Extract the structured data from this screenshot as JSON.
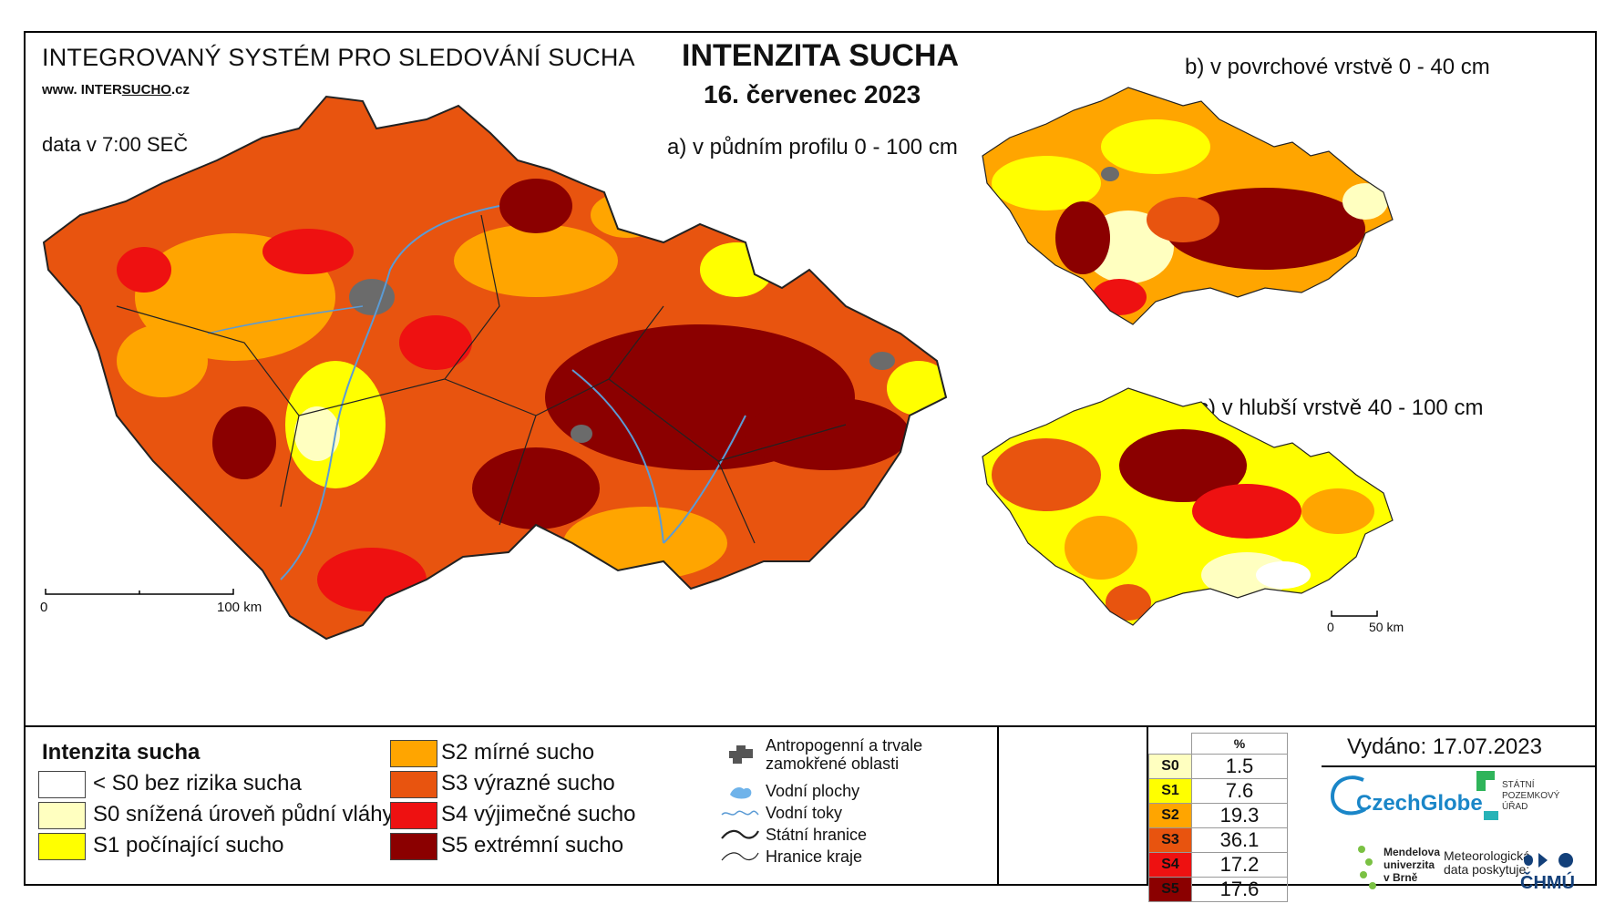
{
  "header": {
    "system_title": "INTEGROVANÝ SYSTÉM PRO SLEDOVÁNÍ SUCHA",
    "website_prefix": "www. INTER",
    "website_underlined": "SUCHO",
    "website_suffix": ".cz",
    "data_time": "data v 7:00 SEČ",
    "title": "INTENZITA SUCHA",
    "date": "16. červenec 2023"
  },
  "maps": {
    "a_label": "a) v půdním profilu 0 - 100 cm",
    "b_label": "b) v povrchové vrstvě 0 - 40 cm",
    "c_label": "c) v hlubší vrstvě 40 - 100 cm",
    "scale_main": {
      "start": "0",
      "end": "100 km"
    },
    "scale_small": {
      "start": "0",
      "end": "50 km"
    }
  },
  "legend": {
    "title": "Intenzita sucha",
    "classes": [
      {
        "label": "< S0 bez rizika sucha",
        "color": "#ffffff"
      },
      {
        "label": "S0 snížená úroveň půdní vláhy",
        "color": "#ffffc0"
      },
      {
        "label": "S1 počínající sucho",
        "color": "#ffff00"
      },
      {
        "label": "S2 mírné sucho",
        "color": "#ffa500"
      },
      {
        "label": "S3 výrazné sucho",
        "color": "#e8540f"
      },
      {
        "label": "S4 výjimečné sucho",
        "color": "#ee1111"
      },
      {
        "label": "S5 extrémní sucho",
        "color": "#8b0000"
      }
    ],
    "symbols": [
      {
        "label": "Antropogenní a trvale zamokřené oblasti",
        "icon": "anthropogenic-area-icon"
      },
      {
        "label": "Vodní plochy",
        "icon": "water-body-icon"
      },
      {
        "label": "Vodní toky",
        "icon": "river-icon"
      },
      {
        "label": "Státní hranice",
        "icon": "state-border-icon"
      },
      {
        "label": "Hranice kraje",
        "icon": "region-border-icon"
      }
    ]
  },
  "percent_table": {
    "header": "%",
    "rows": [
      {
        "cls": "S0",
        "value": "1.5",
        "color": "#ffffc0"
      },
      {
        "cls": "S1",
        "value": "7.6",
        "color": "#ffff00"
      },
      {
        "cls": "S2",
        "value": "19.3",
        "color": "#ffa500"
      },
      {
        "cls": "S3",
        "value": "36.1",
        "color": "#e8540f"
      },
      {
        "cls": "S4",
        "value": "17.2",
        "color": "#ee1111"
      },
      {
        "cls": "S5",
        "value": "17.6",
        "color": "#8b0000"
      }
    ]
  },
  "issued": "Vydáno: 17.07.2023",
  "logos": {
    "czechglobe": "CzechGlobe",
    "spu": "STÁTNÍ POZEMKOVÝ ÚŘAD",
    "mendelu": "Mendelova univerzita v Brně",
    "meteo": "Meteorologická data poskytuje:",
    "chmu": "ČHMÚ"
  }
}
